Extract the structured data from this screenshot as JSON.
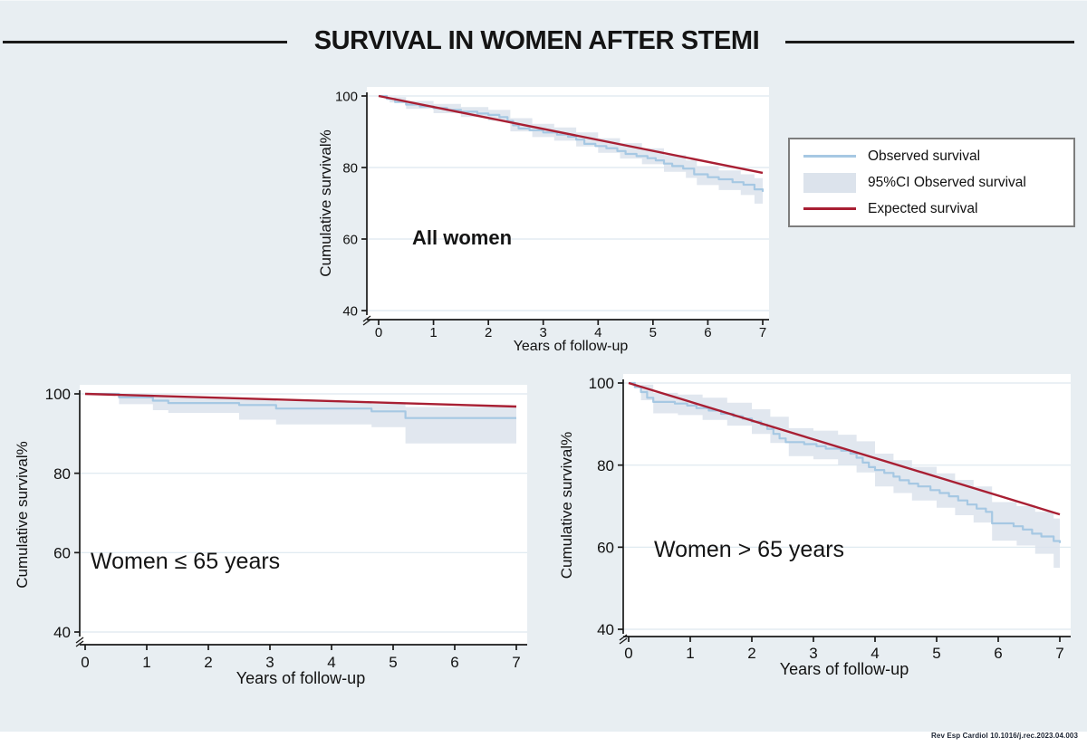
{
  "title": "SURVIVAL IN WOMEN AFTER STEMI",
  "citation": "Rev Esp Cardiol 10.1016/j.rec.2023.04.003",
  "colors": {
    "background": "#e8eef2",
    "plot_background": "#ffffff",
    "observed": "#a6c8e3",
    "expected": "#a81f33",
    "ci_band": "#dce3ec",
    "axis": "#1a1a1a",
    "gridline": "#dde8ef",
    "text": "#111111"
  },
  "legend": {
    "items": [
      {
        "type": "line",
        "color_key": "observed",
        "label": "Observed survival"
      },
      {
        "type": "band",
        "color_key": "ci_band",
        "label": "95%CI Observed survival"
      },
      {
        "type": "line",
        "color_key": "expected",
        "label": "Expected survival"
      }
    ]
  },
  "chart_data": [
    {
      "id": "all-women",
      "type": "line",
      "annotation": "All women",
      "xlabel": "Years of follow-up",
      "ylabel": "Cumulative survival%",
      "xlim": [
        0,
        7
      ],
      "ylim": [
        40,
        100
      ],
      "xticks": [
        0,
        1,
        2,
        3,
        4,
        5,
        6,
        7
      ],
      "yticks": [
        40,
        60,
        80,
        100
      ],
      "axis_break": true,
      "grid": true,
      "series": [
        {
          "name": "Observed survival",
          "style": "step",
          "color_key": "observed",
          "points": [
            [
              0,
              100
            ],
            [
              0.15,
              99.2
            ],
            [
              0.3,
              98.3
            ],
            [
              0.5,
              97.6
            ],
            [
              0.75,
              97.1
            ],
            [
              1,
              96.6
            ],
            [
              1.25,
              96.1
            ],
            [
              1.5,
              95.6
            ],
            [
              1.8,
              95.1
            ],
            [
              2,
              94.7
            ],
            [
              2.2,
              94.1
            ],
            [
              2.35,
              93
            ],
            [
              2.45,
              91.8
            ],
            [
              2.55,
              90.9
            ],
            [
              2.75,
              90.4
            ],
            [
              3,
              89.8
            ],
            [
              3.25,
              89.2
            ],
            [
              3.45,
              88.6
            ],
            [
              3.6,
              87.8
            ],
            [
              3.75,
              86.6
            ],
            [
              3.95,
              86
            ],
            [
              4.15,
              85.4
            ],
            [
              4.35,
              84.6
            ],
            [
              4.5,
              83.8
            ],
            [
              4.7,
              83.2
            ],
            [
              4.9,
              82.6
            ],
            [
              5.05,
              82
            ],
            [
              5.2,
              81.1
            ],
            [
              5.35,
              80.4
            ],
            [
              5.55,
              79.7
            ],
            [
              5.75,
              78.1
            ],
            [
              6,
              77.3
            ],
            [
              6.2,
              76.7
            ],
            [
              6.45,
              75.9
            ],
            [
              6.65,
              75.2
            ],
            [
              6.85,
              73.9
            ],
            [
              7,
              73.2
            ]
          ]
        },
        {
          "name": "Expected survival",
          "style": "straight",
          "color_key": "expected",
          "points": [
            [
              0,
              100
            ],
            [
              7,
              78.5
            ]
          ]
        }
      ],
      "ci_band": {
        "name": "95%CI Observed survival",
        "points": [
          [
            0,
            100,
            100
          ],
          [
            0.2,
            98.2,
            99.7
          ],
          [
            0.5,
            96.4,
            98.6
          ],
          [
            1,
            95.2,
            97.8
          ],
          [
            1.5,
            94.1,
            96.9
          ],
          [
            2,
            93.1,
            96.1
          ],
          [
            2.4,
            90.1,
            93.8
          ],
          [
            2.8,
            88.5,
            92.2
          ],
          [
            3.2,
            87.5,
            91.2
          ],
          [
            3.6,
            85.9,
            89.8
          ],
          [
            4,
            84.1,
            88.2
          ],
          [
            4.4,
            82.5,
            86.8
          ],
          [
            4.8,
            80.9,
            85.4
          ],
          [
            5.2,
            78.8,
            83.5
          ],
          [
            5.6,
            77.1,
            82
          ],
          [
            5.8,
            75.1,
            80.4
          ],
          [
            6.2,
            73.7,
            79.2
          ],
          [
            6.6,
            72.3,
            78.1
          ],
          [
            6.85,
            69.9,
            77
          ],
          [
            7,
            67.2,
            76.8
          ]
        ]
      }
    },
    {
      "id": "le-65",
      "type": "line",
      "annotation": "Women ≤ 65 years",
      "xlabel": "Years of follow-up",
      "ylabel": "Cumulative survival%",
      "xlim": [
        0,
        7
      ],
      "ylim": [
        40,
        100
      ],
      "xticks": [
        0,
        1,
        2,
        3,
        4,
        5,
        6,
        7
      ],
      "yticks": [
        40,
        60,
        80,
        100
      ],
      "axis_break": true,
      "grid": true,
      "series": [
        {
          "name": "Observed survival",
          "style": "step",
          "color_key": "observed",
          "points": [
            [
              0,
              100
            ],
            [
              0.55,
              99.1
            ],
            [
              1.1,
              98.3
            ],
            [
              1.35,
              97.7
            ],
            [
              2.5,
              97.2
            ],
            [
              3.1,
              96.3
            ],
            [
              4.65,
              95.6
            ],
            [
              5.2,
              93.9
            ],
            [
              7,
              93.9
            ]
          ]
        },
        {
          "name": "Expected survival",
          "style": "straight",
          "color_key": "expected",
          "points": [
            [
              0,
              100
            ],
            [
              7,
              96.8
            ]
          ]
        }
      ],
      "ci_band": {
        "name": "95%CI Observed survival",
        "points": [
          [
            0,
            100,
            100
          ],
          [
            0.55,
            97.4,
            99.8
          ],
          [
            1.1,
            95.9,
            99.4
          ],
          [
            1.35,
            95.2,
            99.1
          ],
          [
            2.5,
            93.5,
            98.6
          ],
          [
            3.1,
            92.3,
            98.1
          ],
          [
            4.65,
            91.6,
            97.5
          ],
          [
            5.2,
            87.5,
            96.7
          ],
          [
            7,
            87.5,
            96.7
          ]
        ]
      }
    },
    {
      "id": "gt-65",
      "type": "line",
      "annotation": "Women > 65 years",
      "xlabel": "Years of follow-up",
      "ylabel": "Cumulative survival%",
      "xlim": [
        0,
        7
      ],
      "ylim": [
        40,
        100
      ],
      "xticks": [
        0,
        1,
        2,
        3,
        4,
        5,
        6,
        7
      ],
      "yticks": [
        40,
        60,
        80,
        100
      ],
      "axis_break": true,
      "grid": true,
      "series": [
        {
          "name": "Observed survival",
          "style": "step",
          "color_key": "observed",
          "points": [
            [
              0,
              100
            ],
            [
              0.1,
              99
            ],
            [
              0.2,
              97.8
            ],
            [
              0.3,
              96.4
            ],
            [
              0.4,
              95.4
            ],
            [
              0.75,
              95
            ],
            [
              0.95,
              94.5
            ],
            [
              1.1,
              93.9
            ],
            [
              1.3,
              93.3
            ],
            [
              1.5,
              92.5
            ],
            [
              1.7,
              91.9
            ],
            [
              1.85,
              91.3
            ],
            [
              2,
              90.6
            ],
            [
              2.15,
              89.8
            ],
            [
              2.25,
              88.8
            ],
            [
              2.35,
              87.6
            ],
            [
              2.45,
              86.5
            ],
            [
              2.55,
              85.6
            ],
            [
              2.85,
              85.1
            ],
            [
              3.05,
              84.6
            ],
            [
              3.2,
              84
            ],
            [
              3.45,
              83.5
            ],
            [
              3.6,
              82.8
            ],
            [
              3.7,
              81.8
            ],
            [
              3.8,
              80.6
            ],
            [
              3.9,
              79.5
            ],
            [
              4,
              78.8
            ],
            [
              4.15,
              78.1
            ],
            [
              4.3,
              77.2
            ],
            [
              4.4,
              76.3
            ],
            [
              4.55,
              75.5
            ],
            [
              4.7,
              74.8
            ],
            [
              4.9,
              73.9
            ],
            [
              5.05,
              73.2
            ],
            [
              5.2,
              72.4
            ],
            [
              5.35,
              71.4
            ],
            [
              5.5,
              70.4
            ],
            [
              5.65,
              69.4
            ],
            [
              5.8,
              68.6
            ],
            [
              5.9,
              65.8
            ],
            [
              6.25,
              65.1
            ],
            [
              6.4,
              64.3
            ],
            [
              6.55,
              63.3
            ],
            [
              6.7,
              62.6
            ],
            [
              6.9,
              61.5
            ],
            [
              7,
              61
            ]
          ]
        },
        {
          "name": "Expected survival",
          "style": "straight",
          "color_key": "expected",
          "points": [
            [
              0,
              100
            ],
            [
              7,
              68
            ]
          ]
        }
      ],
      "ci_band": {
        "name": "95%CI Observed survival",
        "points": [
          [
            0,
            100,
            100
          ],
          [
            0.2,
            95.8,
            99.6
          ],
          [
            0.4,
            92.6,
            97.6
          ],
          [
            0.8,
            92.2,
            97.2
          ],
          [
            1.2,
            91,
            96.4
          ],
          [
            1.6,
            89.6,
            95.2
          ],
          [
            2,
            87.6,
            93.6
          ],
          [
            2.3,
            85.4,
            91.8
          ],
          [
            2.6,
            82.2,
            89
          ],
          [
            3,
            81.4,
            88.4
          ],
          [
            3.4,
            80,
            87.4
          ],
          [
            3.7,
            78.2,
            85.8
          ],
          [
            4,
            74.8,
            82.8
          ],
          [
            4.3,
            73.2,
            81.2
          ],
          [
            4.6,
            71.4,
            79.6
          ],
          [
            5,
            69.6,
            78
          ],
          [
            5.3,
            67.8,
            76.4
          ],
          [
            5.6,
            66,
            74.8
          ],
          [
            5.9,
            61.6,
            71
          ],
          [
            6.3,
            60.4,
            70
          ],
          [
            6.6,
            58.4,
            68.6
          ],
          [
            6.9,
            55,
            67
          ],
          [
            7,
            53.2,
            66.8
          ]
        ]
      }
    }
  ]
}
